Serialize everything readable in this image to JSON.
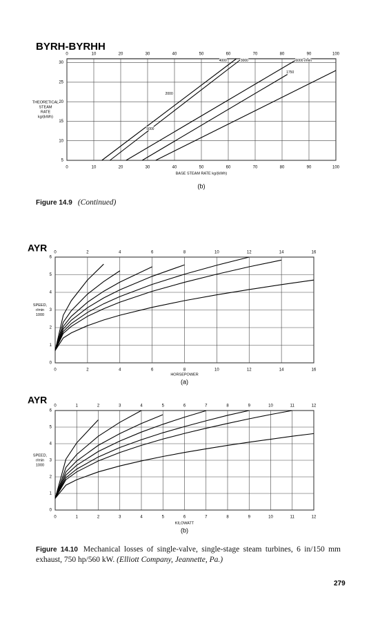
{
  "chart_data": [
    {
      "type": "line",
      "title": "BYRH-BYRHH",
      "panel": "(b)",
      "xlabel": "BASE STEAM RATE kg/(kWh)",
      "ylabel": [
        "THEORETICAL",
        "STEAM",
        "RATE",
        "kg/(kWh)"
      ],
      "xlim": [
        0,
        100
      ],
      "xticks": [
        0,
        10,
        20,
        30,
        40,
        50,
        60,
        70,
        80,
        90,
        100
      ],
      "ylim": [
        5,
        31
      ],
      "yticks": [
        5,
        10,
        15,
        20,
        25,
        30
      ],
      "grid": true,
      "series": [
        {
          "color": "#000000",
          "x": [
            13,
            63
          ],
          "values": [
            5,
            31
          ]
        },
        {
          "color": "#000000",
          "x": [
            16,
            65
          ],
          "values": [
            5,
            31
          ]
        },
        {
          "color": "#000000",
          "x": [
            22,
            86
          ],
          "values": [
            5,
            31
          ]
        },
        {
          "color": "#000000",
          "x": [
            28,
            82
          ],
          "values": [
            5,
            27
          ]
        },
        {
          "color": "#000000",
          "x": [
            33,
            100
          ],
          "values": [
            5,
            28
          ]
        }
      ],
      "annotations": [
        {
          "text": "4000",
          "x": 58,
          "y": 30.5
        },
        {
          "text": "3000",
          "x": 66,
          "y": 30.5
        },
        {
          "text": "6000 r/min",
          "x": 88,
          "y": 30.5
        },
        {
          "text": "1750",
          "x": 83,
          "y": 27.5
        },
        {
          "text": "2000",
          "x": 38,
          "y": 22
        },
        {
          "text": "5000",
          "x": 31,
          "y": 13
        }
      ]
    },
    {
      "type": "line",
      "title": "AYR",
      "panel": "(a)",
      "xlabel": "HORSEPOWER",
      "ylabel": [
        "SPEED,",
        "r/min",
        "1000"
      ],
      "xlim": [
        0,
        16
      ],
      "xticks": [
        0,
        2,
        4,
        6,
        8,
        10,
        12,
        14,
        16
      ],
      "ylim": [
        0,
        6
      ],
      "yticks": [
        0,
        1,
        2,
        3,
        4,
        5,
        6
      ],
      "grid": true,
      "x": [
        0,
        0.5,
        1,
        2,
        3,
        4,
        6,
        8,
        10,
        12,
        14,
        16
      ],
      "series": [
        {
          "color": "#000000",
          "values": [
            0.7,
            2.7,
            3.53,
            4.7,
            5.6,
            null,
            null,
            null,
            null,
            null,
            null,
            null
          ]
        },
        {
          "color": "#000000",
          "values": [
            0.7,
            2.3,
            2.96,
            3.9,
            4.61,
            5.22,
            null,
            null,
            null,
            null,
            null,
            null
          ]
        },
        {
          "color": "#000000",
          "values": [
            0.7,
            2.07,
            2.64,
            3.44,
            4.06,
            4.58,
            5.45,
            null,
            null,
            null,
            null,
            null
          ]
        },
        {
          "color": "#000000",
          "values": [
            0.7,
            1.92,
            2.42,
            3.13,
            3.68,
            4.14,
            4.91,
            5.56,
            null,
            null,
            null,
            null
          ]
        },
        {
          "color": "#000000",
          "values": [
            0.7,
            1.78,
            2.23,
            2.86,
            3.35,
            3.76,
            4.45,
            5.03,
            5.54,
            6,
            null,
            null
          ]
        },
        {
          "color": "#000000",
          "values": [
            0.7,
            1.67,
            2.07,
            2.64,
            3.07,
            3.44,
            4.06,
            4.57,
            5.03,
            5.45,
            5.83,
            null
          ]
        },
        {
          "color": "#000000",
          "values": [
            0.7,
            1.41,
            1.7,
            2.11,
            2.43,
            2.7,
            3.15,
            3.53,
            3.86,
            4.16,
            4.44,
            4.7
          ]
        }
      ]
    },
    {
      "type": "line",
      "title": "AYR",
      "panel": "(b)",
      "xlabel": "KILOWATT",
      "ylabel": [
        "SPEED,",
        "r/min",
        "1000"
      ],
      "xlim": [
        0,
        12
      ],
      "xticks": [
        0,
        1,
        2,
        3,
        4,
        5,
        6,
        7,
        8,
        9,
        10,
        11,
        12
      ],
      "ylim": [
        0,
        6
      ],
      "yticks": [
        0,
        1,
        2,
        3,
        4,
        5,
        6
      ],
      "grid": true,
      "x": [
        0,
        0.5,
        1,
        2,
        3,
        4,
        5,
        6,
        7,
        8,
        9,
        10,
        11,
        12
      ],
      "series": [
        {
          "color": "#000000",
          "values": [
            0.7,
            3.07,
            4.05,
            5.44,
            null,
            null,
            null,
            null,
            null,
            null,
            null,
            null,
            null,
            null
          ]
        },
        {
          "color": "#000000",
          "values": [
            0.7,
            2.57,
            3.35,
            4.45,
            5.29,
            6,
            null,
            null,
            null,
            null,
            null,
            null,
            null,
            null
          ]
        },
        {
          "color": "#000000",
          "values": [
            0.7,
            2.3,
            2.96,
            3.9,
            4.61,
            5.22,
            5.75,
            null,
            null,
            null,
            null,
            null,
            null,
            null
          ]
        },
        {
          "color": "#000000",
          "values": [
            0.7,
            2.11,
            2.7,
            3.53,
            4.16,
            4.7,
            5.17,
            5.6,
            5.99,
            null,
            null,
            null,
            null,
            null
          ]
        },
        {
          "color": "#000000",
          "values": [
            0.7,
            1.95,
            2.47,
            3.2,
            3.77,
            4.24,
            4.66,
            5.03,
            5.38,
            5.71,
            6,
            null,
            null,
            null
          ]
        },
        {
          "color": "#000000",
          "values": [
            0.7,
            1.83,
            2.3,
            2.96,
            3.47,
            3.9,
            4.28,
            4.62,
            4.93,
            5.22,
            5.5,
            5.76,
            6,
            null
          ]
        },
        {
          "color": "#000000",
          "values": [
            0.7,
            1.5,
            1.83,
            2.3,
            2.66,
            2.96,
            3.23,
            3.47,
            3.69,
            3.9,
            4.09,
            4.27,
            4.45,
            4.61
          ]
        }
      ]
    }
  ],
  "figure_14_9": {
    "label": "Figure 14.9",
    "text": "(Continued)"
  },
  "figure_14_10": {
    "label": "Figure 14.10",
    "text": "Mechanical losses of single-valve, single-stage steam turbines, 6 in/150 mm exhaust, 750 hp/560 kW.",
    "credit": "(Elliott Company, Jeannette, Pa.)"
  },
  "page_number": "279"
}
